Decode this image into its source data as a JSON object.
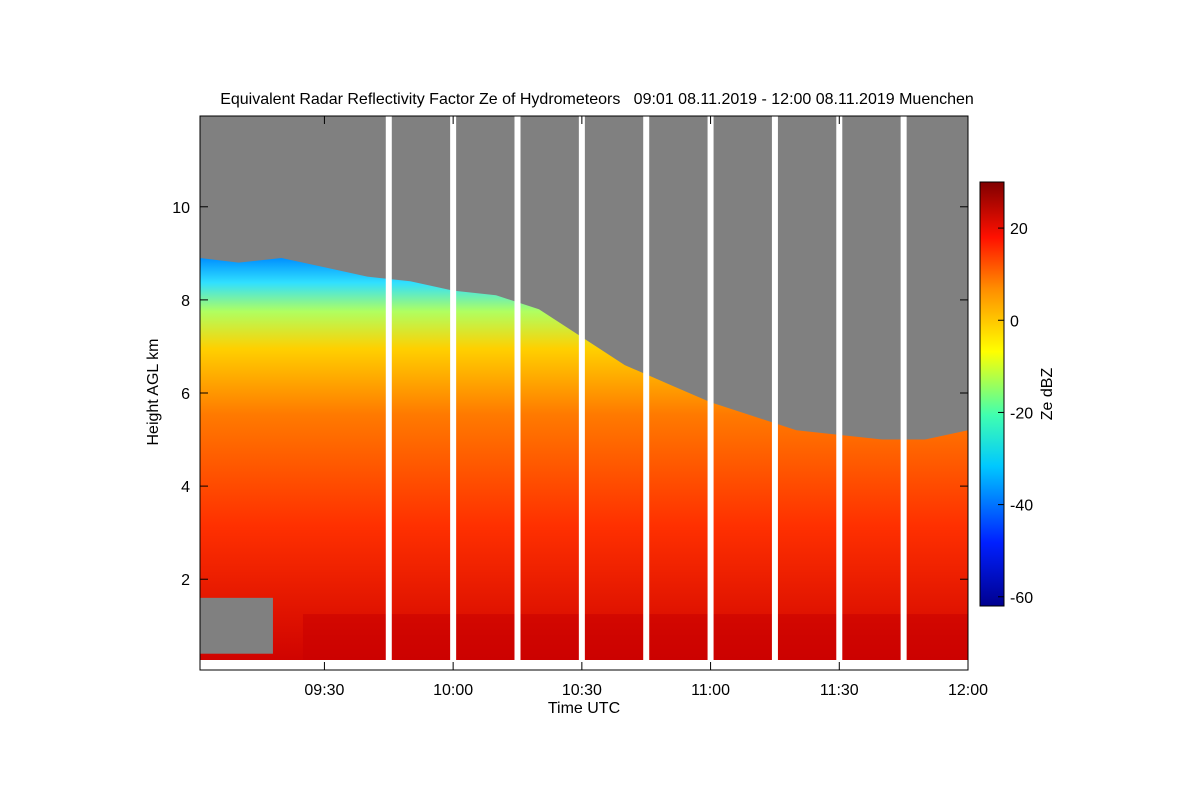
{
  "chart_data": {
    "type": "heatmap",
    "title": "Equivalent Radar Reflectivity Factor Ze of Hydrometeors   09:01 08.11.2019 - 12:00 08.11.2019 Muenchen",
    "xlabel": "Time UTC",
    "ylabel": "Height AGL km",
    "x_range_minutes": [
      541,
      720
    ],
    "x_ticks": [
      {
        "label": "09:30",
        "minute": 570
      },
      {
        "label": "10:00",
        "minute": 600
      },
      {
        "label": "10:30",
        "minute": 630
      },
      {
        "label": "11:00",
        "minute": 660
      },
      {
        "label": "11:30",
        "minute": 690
      },
      {
        "label": "12:00",
        "minute": 720
      }
    ],
    "y_range_km": [
      0.05,
      11.95
    ],
    "y_ticks": [
      {
        "label": "2",
        "value": 2
      },
      {
        "label": "4",
        "value": 4
      },
      {
        "label": "6",
        "value": 6
      },
      {
        "label": "8",
        "value": 8
      },
      {
        "label": "10",
        "value": 10
      }
    ],
    "colorbar": {
      "label": "Ze dBZ",
      "range": [
        -62,
        30
      ],
      "ticks": [
        {
          "label": "-60",
          "value": -60
        },
        {
          "label": "-40",
          "value": -40
        },
        {
          "label": "-20",
          "value": -20
        },
        {
          "label": "0",
          "value": 0
        },
        {
          "label": "20",
          "value": 20
        }
      ]
    },
    "no_signal_color": "#808080",
    "data_gaps_minutes": [
      585,
      600,
      615,
      630,
      645,
      660,
      675,
      690,
      705
    ],
    "cloud_top_km": [
      {
        "minute": 541,
        "top": 8.9
      },
      {
        "minute": 550,
        "top": 8.8
      },
      {
        "minute": 560,
        "top": 8.9
      },
      {
        "minute": 570,
        "top": 8.7
      },
      {
        "minute": 580,
        "top": 8.5
      },
      {
        "minute": 590,
        "top": 8.4
      },
      {
        "minute": 600,
        "top": 8.2
      },
      {
        "minute": 610,
        "top": 8.1
      },
      {
        "minute": 620,
        "top": 7.8
      },
      {
        "minute": 630,
        "top": 7.2
      },
      {
        "minute": 640,
        "top": 6.6
      },
      {
        "minute": 650,
        "top": 6.2
      },
      {
        "minute": 660,
        "top": 5.8
      },
      {
        "minute": 670,
        "top": 5.5
      },
      {
        "minute": 680,
        "top": 5.2
      },
      {
        "minute": 690,
        "top": 5.1
      },
      {
        "minute": 700,
        "top": 5.0
      },
      {
        "minute": 710,
        "top": 5.0
      },
      {
        "minute": 720,
        "top": 5.2
      }
    ],
    "melting_layer_km": 1.2,
    "low_level_no_signal": {
      "minute_range": [
        541,
        558
      ],
      "height_range_km": [
        0.4,
        1.6
      ]
    }
  }
}
